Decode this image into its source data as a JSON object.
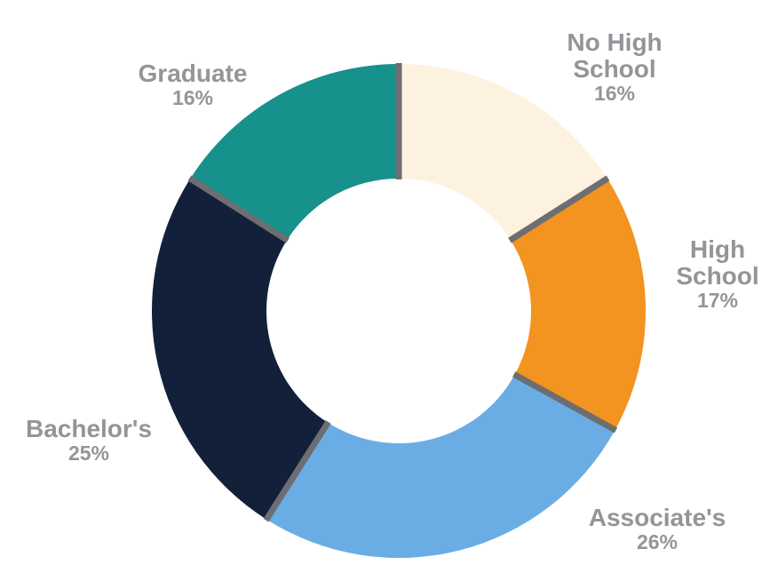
{
  "chart_data": {
    "type": "donut",
    "categories": [
      "No High School",
      "High School",
      "Associate's",
      "Bachelor's",
      "Graduate"
    ],
    "values": [
      16,
      17,
      26,
      25,
      16
    ],
    "value_labels": [
      "16%",
      "17%",
      "26%",
      "25%",
      "16%"
    ],
    "colors": [
      "#fdf2df",
      "#f39320",
      "#6aade4",
      "#13203a",
      "#17918c"
    ]
  }
}
